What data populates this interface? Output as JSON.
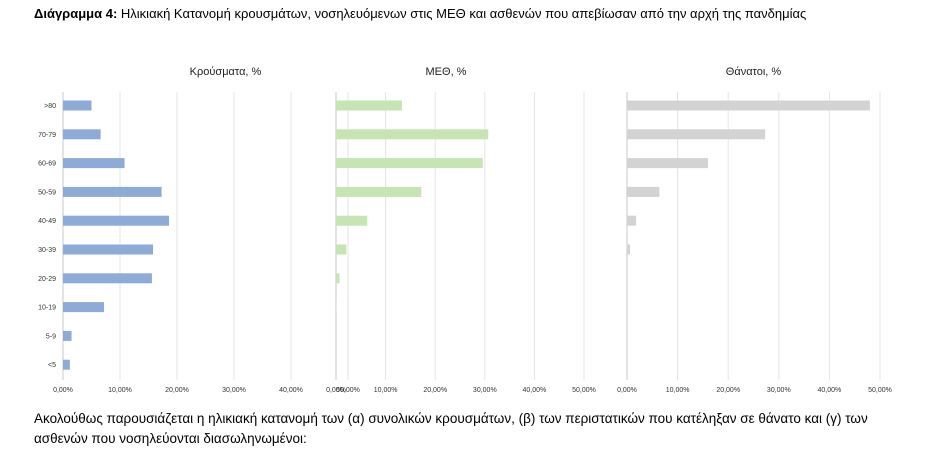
{
  "title": {
    "prefix": "Διάγραμμα 4:",
    "text": "Ηλικιακή Κατανομή κρουσμάτων, νοσηλευόμενων στις ΜΕΘ και ασθενών που απεβίωσαν από την αρχή της πανδημίας"
  },
  "footer": "Ακολούθως παρουσιάζεται η ηλικιακή κατανομή των (α) συνολικών κρουσμάτων, (β) των περιστατικών που κατέληξαν σε θάνατο και (γ) των ασθενών που νοσηλεύονται διασωληνωμένοι:",
  "chart_data": [
    {
      "type": "bar",
      "orientation": "horizontal",
      "title": "Κρούσματα, %",
      "categories": [
        ">80",
        "70-79",
        "60-69",
        "50-59",
        "40-49",
        "30-39",
        "20-29",
        "10-19",
        "5-9",
        "<5"
      ],
      "values": [
        5.0,
        6.6,
        10.8,
        17.3,
        18.6,
        15.8,
        15.6,
        7.2,
        1.5,
        1.2
      ],
      "xlim": [
        0,
        50
      ],
      "ticks": [
        "0,00%",
        "10,00%",
        "20,00%",
        "30,00%",
        "40,00%",
        "50,00%"
      ],
      "color": "#8eaad6",
      "grid": true
    },
    {
      "type": "bar",
      "orientation": "horizontal",
      "title": "ΜΕΘ, %",
      "categories": [
        ">80",
        "70-79",
        "60-69",
        "50-59",
        "40-49",
        "30-39",
        "20-29",
        "10-19",
        "5-9",
        "<5"
      ],
      "values": [
        13.3,
        30.7,
        29.6,
        17.2,
        6.3,
        2.1,
        0.7,
        0.1,
        0,
        0
      ],
      "xlim": [
        0,
        50
      ],
      "ticks": [
        "0,00%",
        "10,00%",
        "20,00%",
        "30,00%",
        "40,00%",
        "50,00%"
      ],
      "color": "#c6e4b4",
      "grid": true
    },
    {
      "type": "bar",
      "orientation": "horizontal",
      "title": "Θάνατοι, %",
      "categories": [
        ">80",
        "70-79",
        "60-69",
        "50-59",
        "40-49",
        "30-39",
        "20-29",
        "10-19",
        "5-9",
        "<5"
      ],
      "values": [
        48.0,
        27.3,
        16.0,
        6.4,
        1.8,
        0.6,
        0,
        0,
        0,
        0
      ],
      "xlim": [
        0,
        50
      ],
      "ticks": [
        "0,00%",
        "10,00%",
        "20,00%",
        "30,00%",
        "40,00%",
        "50,00%"
      ],
      "color": "#d3d3d3",
      "grid": true
    }
  ]
}
